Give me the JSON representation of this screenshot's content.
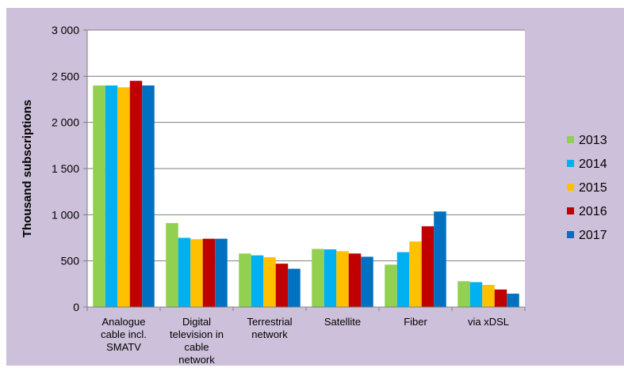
{
  "chart_data": {
    "type": "bar",
    "title": "",
    "xlabel": "",
    "ylabel": "Thousand subscriptions",
    "ylim": [
      0,
      3000
    ],
    "y_ticks": [
      {
        "value": 0,
        "label": "0"
      },
      {
        "value": 500,
        "label": "500"
      },
      {
        "value": 1000,
        "label": "1 000"
      },
      {
        "value": 1500,
        "label": "1 500"
      },
      {
        "value": 2000,
        "label": "2 000"
      },
      {
        "value": 2500,
        "label": "2 500"
      },
      {
        "value": 3000,
        "label": "3 000"
      }
    ],
    "grid": true,
    "legend_position": "right",
    "categories": [
      [
        "Analogue",
        "cable incl.",
        "SMATV"
      ],
      [
        "Digital",
        "television in",
        "cable",
        "network"
      ],
      [
        "Terrestrial",
        "network"
      ],
      [
        "Satellite"
      ],
      [
        "Fiber"
      ],
      [
        "via xDSL"
      ]
    ],
    "series": [
      {
        "name": "2013",
        "color": "#92d050",
        "values": [
          2400,
          910,
          580,
          630,
          460,
          280
        ]
      },
      {
        "name": "2014",
        "color": "#00b0f0",
        "values": [
          2400,
          750,
          560,
          625,
          595,
          270
        ]
      },
      {
        "name": "2015",
        "color": "#ffc000",
        "values": [
          2380,
          735,
          540,
          605,
          710,
          240
        ]
      },
      {
        "name": "2016",
        "color": "#c00000",
        "values": [
          2450,
          740,
          470,
          580,
          875,
          190
        ]
      },
      {
        "name": "2017",
        "color": "#0070c0",
        "values": [
          2400,
          740,
          415,
          545,
          1035,
          145
        ]
      }
    ]
  }
}
